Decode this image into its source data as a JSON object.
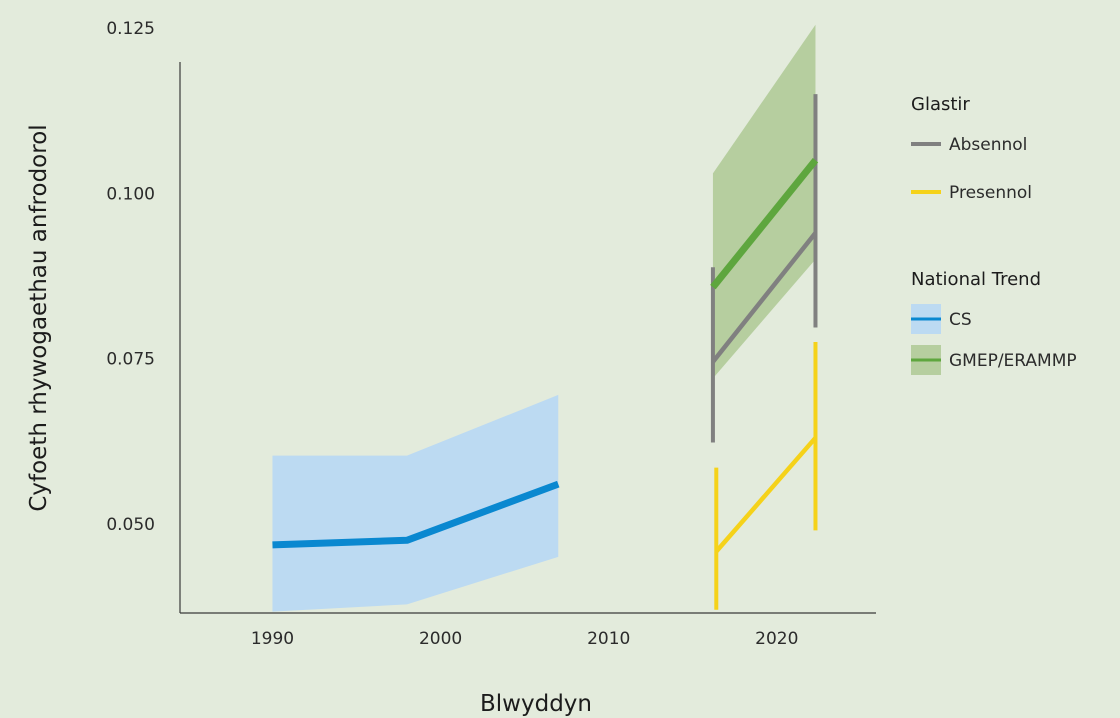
{
  "chart_data": {
    "type": "line",
    "title": "",
    "xlabel": "Blwyddyn",
    "ylabel": "Cyfoeth rhywogaethau anfrodorol",
    "xlim": [
      1984.5,
      2025.9
    ],
    "ylim": [
      0.0365,
      0.125
    ],
    "xticks": [
      1990,
      2000,
      2010,
      2020
    ],
    "xtick_labels": [
      "1990",
      "2000",
      "2010",
      "2020"
    ],
    "yticks": [
      0.05,
      0.075,
      0.1,
      0.125
    ],
    "ytick_labels": [
      "0.050",
      "0.075",
      "0.100",
      "0.125"
    ],
    "grid": false,
    "legend": {
      "position": "right",
      "groups": [
        {
          "title": "Glastir",
          "items": [
            {
              "label": "Absennol",
              "color": "#808080",
              "style": "line"
            },
            {
              "label": "Presennol",
              "color": "#f5d21a",
              "style": "line"
            }
          ]
        },
        {
          "title": "National Trend",
          "items": [
            {
              "label": "CS",
              "color": "#0a88d0",
              "fill": "#bcdaf2",
              "style": "ribbon"
            },
            {
              "label": "GMEP/ERAMMP",
              "color": "#5ea63e",
              "fill": "#b6ce9f",
              "style": "ribbon"
            }
          ]
        }
      ]
    },
    "series": [
      {
        "name": "CS",
        "kind": "ribbon",
        "color": "#0a88d0",
        "fill": "#bcdaf2",
        "x": [
          1990,
          1998,
          2007
        ],
        "y": [
          0.0468,
          0.0475,
          0.056
        ],
        "lower": [
          0.0367,
          0.0378,
          0.045
        ],
        "upper": [
          0.0603,
          0.0603,
          0.0695
        ]
      },
      {
        "name": "GMEP/ERAMMP",
        "kind": "ribbon",
        "color": "#5ea63e",
        "fill": "#b6ce9f",
        "x": [
          2016.2,
          2022.3
        ],
        "y": [
          0.0858,
          0.105
        ],
        "lower": [
          0.072,
          0.09
        ],
        "upper": [
          0.103,
          0.1255
        ]
      },
      {
        "name": "Absennol",
        "kind": "errorline",
        "color": "#808080",
        "x": [
          2016.2,
          2022.3
        ],
        "y": [
          0.0745,
          0.094
        ],
        "lower": [
          0.0623,
          0.0797
        ],
        "upper": [
          0.0888,
          0.115
        ]
      },
      {
        "name": "Presennol",
        "kind": "errorline",
        "color": "#f5d21a",
        "x": [
          2016.4,
          2022.3
        ],
        "y": [
          0.0458,
          0.063
        ],
        "lower": [
          0.037,
          0.049
        ],
        "upper": [
          0.0585,
          0.0775
        ]
      }
    ]
  }
}
